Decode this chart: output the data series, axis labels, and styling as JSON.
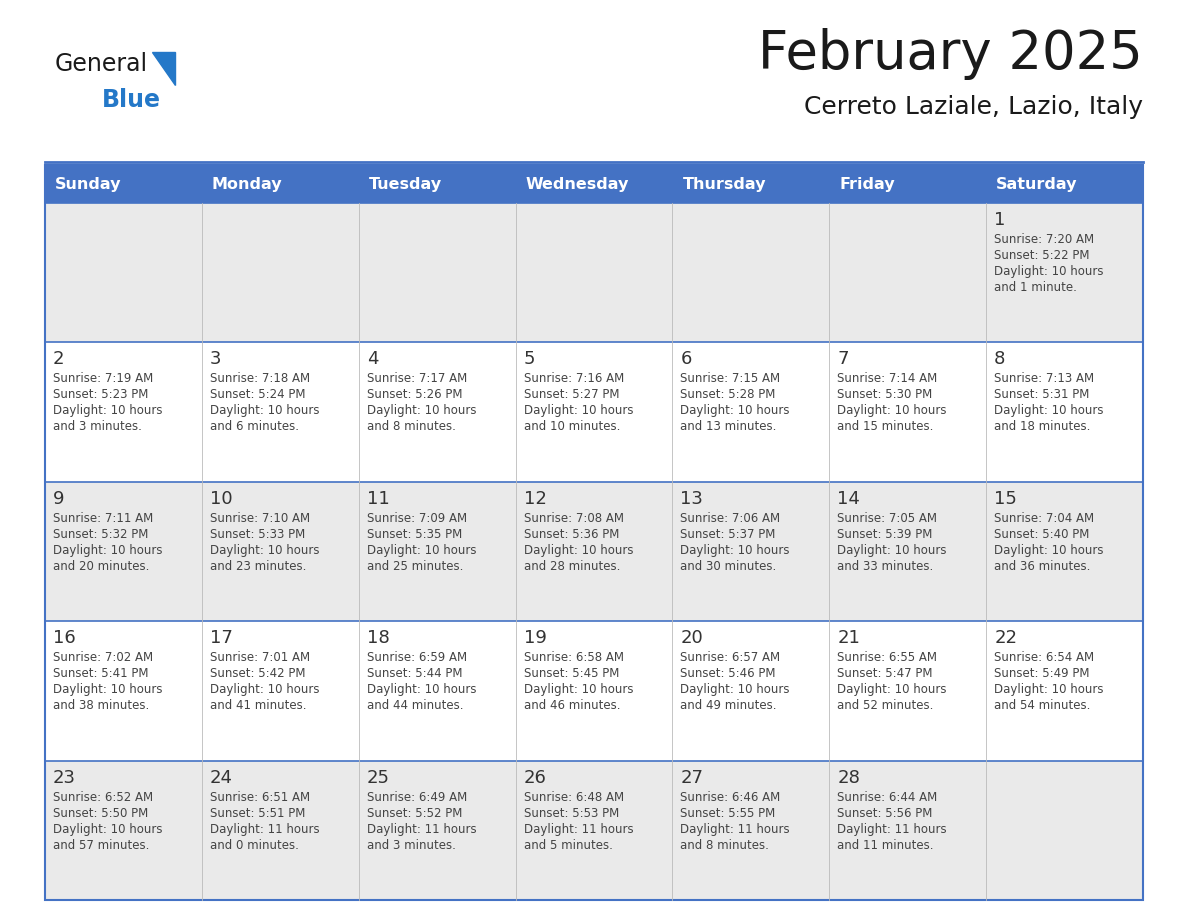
{
  "title": "February 2025",
  "subtitle": "Cerreto Laziale, Lazio, Italy",
  "days_of_week": [
    "Sunday",
    "Monday",
    "Tuesday",
    "Wednesday",
    "Thursday",
    "Friday",
    "Saturday"
  ],
  "header_bg": "#4472C4",
  "header_text": "#FFFFFF",
  "cell_bg_odd": "#EAEAEA",
  "cell_bg_even": "#FFFFFF",
  "border_color": "#4472C4",
  "day_num_color": "#333333",
  "text_color": "#444444",
  "logo_general_color": "#1a1a1a",
  "logo_blue_color": "#2478C8",
  "weeks": [
    [
      {
        "day": null
      },
      {
        "day": null
      },
      {
        "day": null
      },
      {
        "day": null
      },
      {
        "day": null
      },
      {
        "day": null
      },
      {
        "day": 1,
        "sunrise": "7:20 AM",
        "sunset": "5:22 PM",
        "daylight": "10 hours\nand 1 minute."
      }
    ],
    [
      {
        "day": 2,
        "sunrise": "7:19 AM",
        "sunset": "5:23 PM",
        "daylight": "10 hours\nand 3 minutes."
      },
      {
        "day": 3,
        "sunrise": "7:18 AM",
        "sunset": "5:24 PM",
        "daylight": "10 hours\nand 6 minutes."
      },
      {
        "day": 4,
        "sunrise": "7:17 AM",
        "sunset": "5:26 PM",
        "daylight": "10 hours\nand 8 minutes."
      },
      {
        "day": 5,
        "sunrise": "7:16 AM",
        "sunset": "5:27 PM",
        "daylight": "10 hours\nand 10 minutes."
      },
      {
        "day": 6,
        "sunrise": "7:15 AM",
        "sunset": "5:28 PM",
        "daylight": "10 hours\nand 13 minutes."
      },
      {
        "day": 7,
        "sunrise": "7:14 AM",
        "sunset": "5:30 PM",
        "daylight": "10 hours\nand 15 minutes."
      },
      {
        "day": 8,
        "sunrise": "7:13 AM",
        "sunset": "5:31 PM",
        "daylight": "10 hours\nand 18 minutes."
      }
    ],
    [
      {
        "day": 9,
        "sunrise": "7:11 AM",
        "sunset": "5:32 PM",
        "daylight": "10 hours\nand 20 minutes."
      },
      {
        "day": 10,
        "sunrise": "7:10 AM",
        "sunset": "5:33 PM",
        "daylight": "10 hours\nand 23 minutes."
      },
      {
        "day": 11,
        "sunrise": "7:09 AM",
        "sunset": "5:35 PM",
        "daylight": "10 hours\nand 25 minutes."
      },
      {
        "day": 12,
        "sunrise": "7:08 AM",
        "sunset": "5:36 PM",
        "daylight": "10 hours\nand 28 minutes."
      },
      {
        "day": 13,
        "sunrise": "7:06 AM",
        "sunset": "5:37 PM",
        "daylight": "10 hours\nand 30 minutes."
      },
      {
        "day": 14,
        "sunrise": "7:05 AM",
        "sunset": "5:39 PM",
        "daylight": "10 hours\nand 33 minutes."
      },
      {
        "day": 15,
        "sunrise": "7:04 AM",
        "sunset": "5:40 PM",
        "daylight": "10 hours\nand 36 minutes."
      }
    ],
    [
      {
        "day": 16,
        "sunrise": "7:02 AM",
        "sunset": "5:41 PM",
        "daylight": "10 hours\nand 38 minutes."
      },
      {
        "day": 17,
        "sunrise": "7:01 AM",
        "sunset": "5:42 PM",
        "daylight": "10 hours\nand 41 minutes."
      },
      {
        "day": 18,
        "sunrise": "6:59 AM",
        "sunset": "5:44 PM",
        "daylight": "10 hours\nand 44 minutes."
      },
      {
        "day": 19,
        "sunrise": "6:58 AM",
        "sunset": "5:45 PM",
        "daylight": "10 hours\nand 46 minutes."
      },
      {
        "day": 20,
        "sunrise": "6:57 AM",
        "sunset": "5:46 PM",
        "daylight": "10 hours\nand 49 minutes."
      },
      {
        "day": 21,
        "sunrise": "6:55 AM",
        "sunset": "5:47 PM",
        "daylight": "10 hours\nand 52 minutes."
      },
      {
        "day": 22,
        "sunrise": "6:54 AM",
        "sunset": "5:49 PM",
        "daylight": "10 hours\nand 54 minutes."
      }
    ],
    [
      {
        "day": 23,
        "sunrise": "6:52 AM",
        "sunset": "5:50 PM",
        "daylight": "10 hours\nand 57 minutes."
      },
      {
        "day": 24,
        "sunrise": "6:51 AM",
        "sunset": "5:51 PM",
        "daylight": "11 hours\nand 0 minutes."
      },
      {
        "day": 25,
        "sunrise": "6:49 AM",
        "sunset": "5:52 PM",
        "daylight": "11 hours\nand 3 minutes."
      },
      {
        "day": 26,
        "sunrise": "6:48 AM",
        "sunset": "5:53 PM",
        "daylight": "11 hours\nand 5 minutes."
      },
      {
        "day": 27,
        "sunrise": "6:46 AM",
        "sunset": "5:55 PM",
        "daylight": "11 hours\nand 8 minutes."
      },
      {
        "day": 28,
        "sunrise": "6:44 AM",
        "sunset": "5:56 PM",
        "daylight": "11 hours\nand 11 minutes."
      },
      {
        "day": null
      }
    ]
  ]
}
